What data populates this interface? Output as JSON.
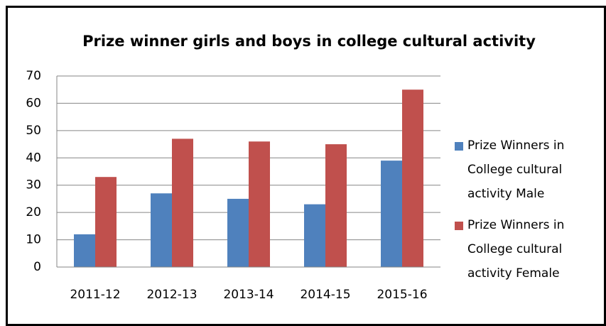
{
  "chart_data": {
    "type": "bar",
    "title": "Prize winner girls and boys in college cultural activity",
    "categories": [
      "2011-12",
      "2012-13",
      "2013-14",
      "2014-15",
      "2015-16"
    ],
    "series": [
      {
        "name": "Prize Winners in College cultural activity Male",
        "color": "#4f81bd",
        "values": [
          12,
          27,
          25,
          23,
          39
        ]
      },
      {
        "name": "Prize Winners in College cultural activity Female",
        "color": "#c0504d",
        "values": [
          33,
          47,
          46,
          45,
          65
        ]
      }
    ],
    "ylim": [
      0,
      70
    ],
    "yticks": [
      0,
      10,
      20,
      30,
      40,
      50,
      60,
      70
    ],
    "grid": true,
    "legend": "right"
  }
}
